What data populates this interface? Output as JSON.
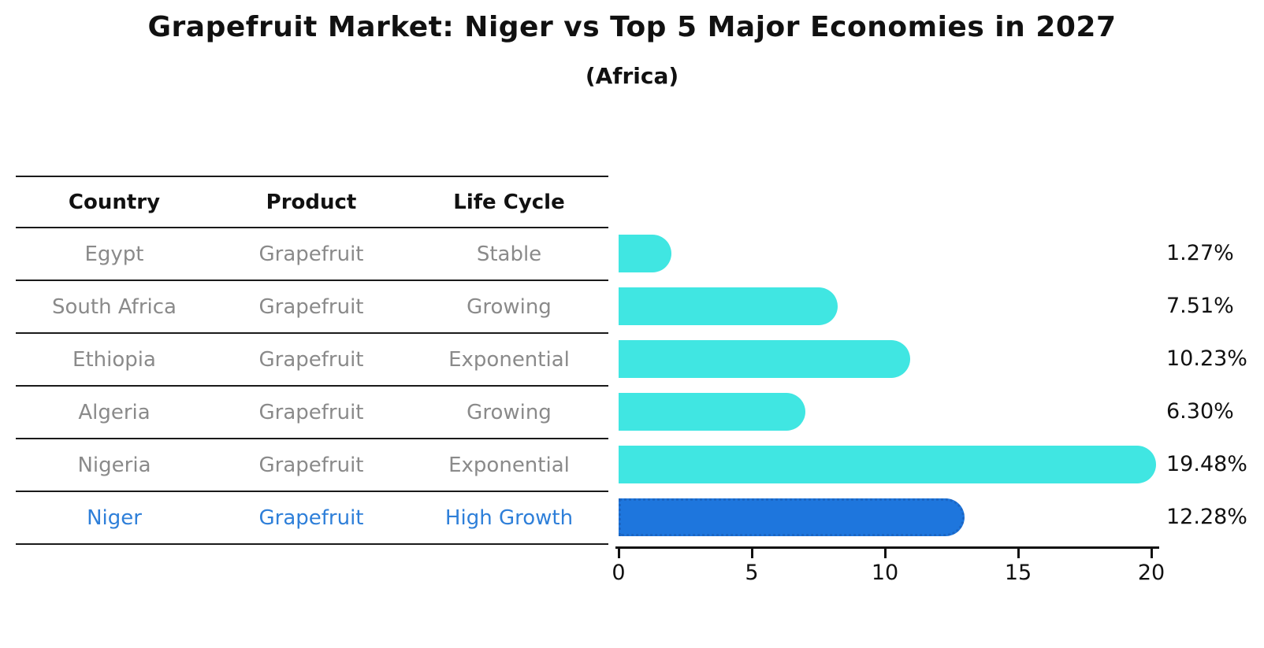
{
  "title": "Grapefruit Market: Niger vs Top 5 Major Economies in 2027",
  "subtitle": "(Africa)",
  "table": {
    "headers": [
      "Country",
      "Product",
      "Life Cycle"
    ],
    "rows": [
      {
        "country": "Egypt",
        "product": "Grapefruit",
        "life_cycle": "Stable",
        "highlight": false
      },
      {
        "country": "South Africa",
        "product": "Grapefruit",
        "life_cycle": "Growing",
        "highlight": false
      },
      {
        "country": "Ethiopia",
        "product": "Grapefruit",
        "life_cycle": "Exponential",
        "highlight": false
      },
      {
        "country": "Algeria",
        "product": "Grapefruit",
        "life_cycle": "Growing",
        "highlight": false
      },
      {
        "country": "Nigeria",
        "product": "Grapefruit",
        "life_cycle": "Exponential",
        "highlight": false
      },
      {
        "country": "Niger",
        "product": "Grapefruit",
        "life_cycle": "High Growth",
        "highlight": true
      }
    ]
  },
  "chart_data": {
    "type": "bar",
    "orientation": "horizontal",
    "categories": [
      "Egypt",
      "South Africa",
      "Ethiopia",
      "Algeria",
      "Nigeria",
      "Niger"
    ],
    "values": [
      1.27,
      7.51,
      10.23,
      6.3,
      19.48,
      12.28
    ],
    "value_labels": [
      "1.27%",
      "7.51%",
      "10.23%",
      "6.30%",
      "19.48%",
      "12.28%"
    ],
    "xlim": [
      0,
      20
    ],
    "xticks": [
      "0",
      "5",
      "10",
      "15",
      "20"
    ],
    "xtick_values": [
      0,
      5,
      10,
      15,
      20
    ],
    "grid": false,
    "legend": "none",
    "highlight_index": 5,
    "colors": {
      "bar": "#40E6E2",
      "highlight_bar": "#1E76DD",
      "highlight_bar_border": "#1B66C4",
      "highlight_text": "#2E7FD9",
      "table_text": "#8a8a8a",
      "axis": "#111111"
    }
  }
}
